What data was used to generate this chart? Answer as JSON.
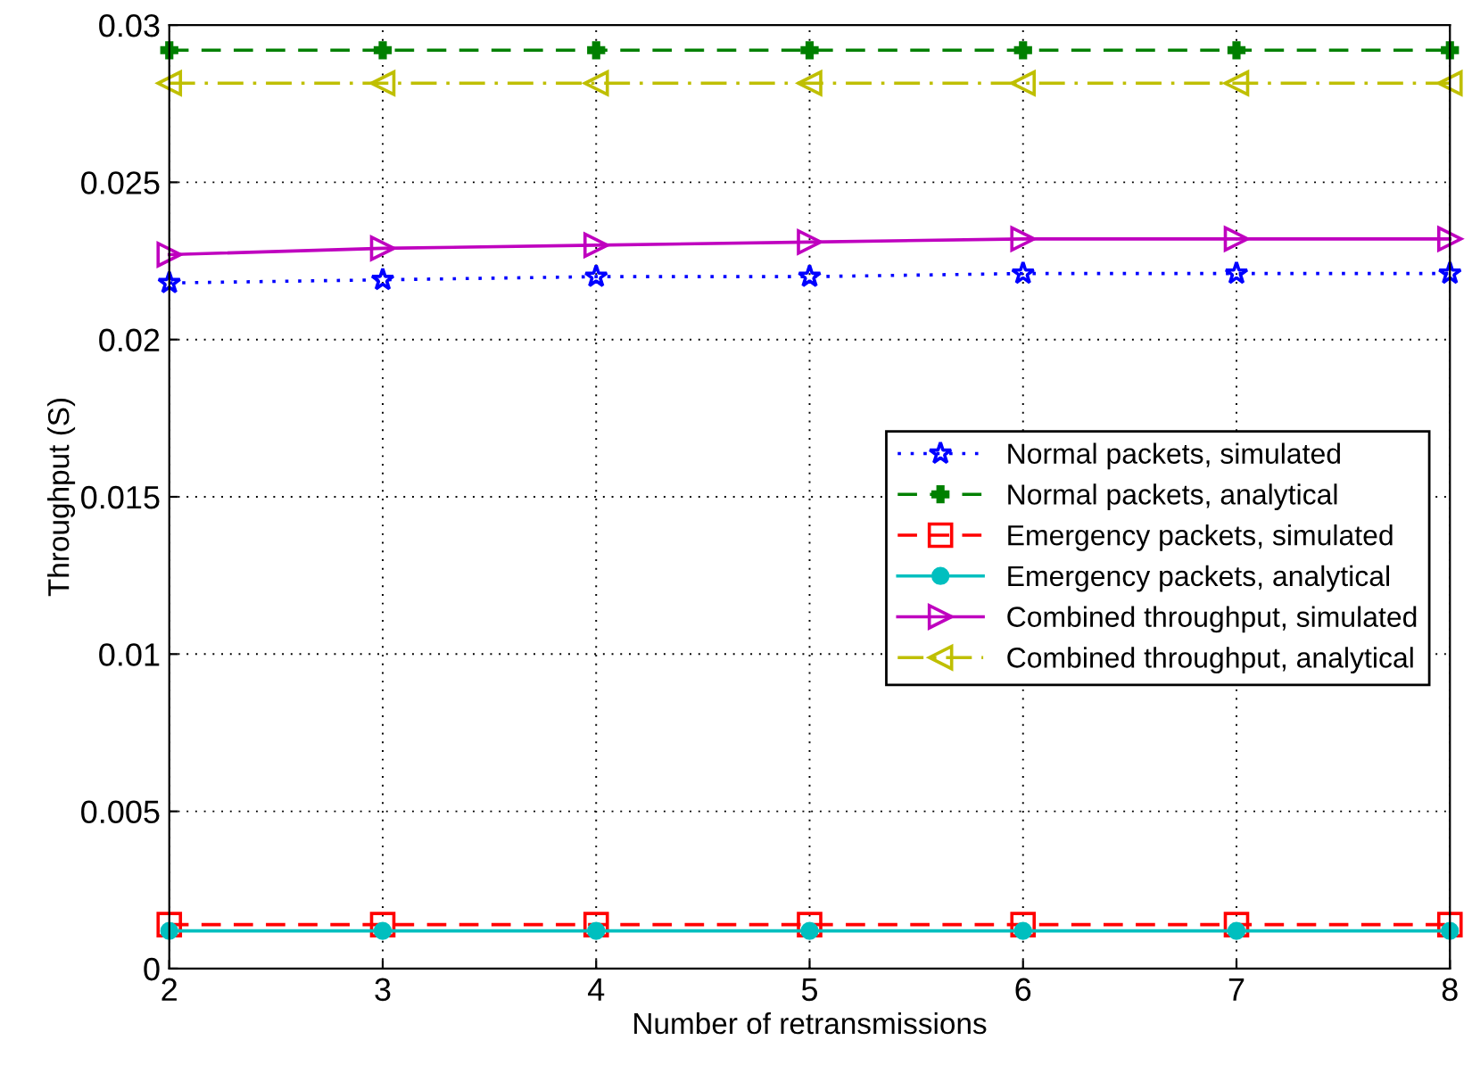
{
  "chart_data": {
    "type": "line",
    "xlabel": "Number of retransmissions",
    "ylabel": "Throughput (S)",
    "x": [
      2,
      3,
      4,
      5,
      6,
      7,
      8
    ],
    "xlim": [
      2,
      8
    ],
    "xticks": [
      2,
      3,
      4,
      5,
      6,
      7,
      8
    ],
    "ylim": [
      0,
      0.03
    ],
    "yticks": [
      0,
      0.005,
      0.01,
      0.015,
      0.02,
      0.025,
      0.03
    ],
    "grid": true,
    "legend": "right",
    "series": [
      {
        "name": "Normal packets, simulated",
        "color": "#0000ff",
        "marker": "star",
        "line_style": "dotted",
        "values": [
          0.0218,
          0.0219,
          0.022,
          0.022,
          0.0221,
          0.0221,
          0.0221
        ]
      },
      {
        "name": "Normal packets, analytical",
        "color": "#008000",
        "marker": "cross",
        "line_style": "dashed",
        "values": [
          0.0292,
          0.0292,
          0.0292,
          0.0292,
          0.0292,
          0.0292,
          0.0292
        ]
      },
      {
        "name": "Emergency packets, simulated",
        "color": "#ff0000",
        "marker": "square",
        "line_style": "dashed",
        "values": [
          0.0014,
          0.0014,
          0.0014,
          0.0014,
          0.0014,
          0.0014,
          0.0014
        ]
      },
      {
        "name": "Emergency packets, analytical",
        "color": "#00bfbf",
        "marker": "circle",
        "line_style": "solid",
        "values": [
          0.0012,
          0.0012,
          0.0012,
          0.0012,
          0.0012,
          0.0012,
          0.0012
        ]
      },
      {
        "name": "Combined throughput, simulated",
        "color": "#bf00bf",
        "marker": "triangle_right",
        "line_style": "solid",
        "values": [
          0.0227,
          0.0229,
          0.023,
          0.0231,
          0.0232,
          0.0232,
          0.0232
        ]
      },
      {
        "name": "Combined throughput, analytical",
        "color": "#bfbf00",
        "marker": "triangle_left",
        "line_style": "dashdot",
        "values": [
          0.02815,
          0.02815,
          0.02815,
          0.02815,
          0.02815,
          0.02815,
          0.02815
        ]
      }
    ]
  }
}
